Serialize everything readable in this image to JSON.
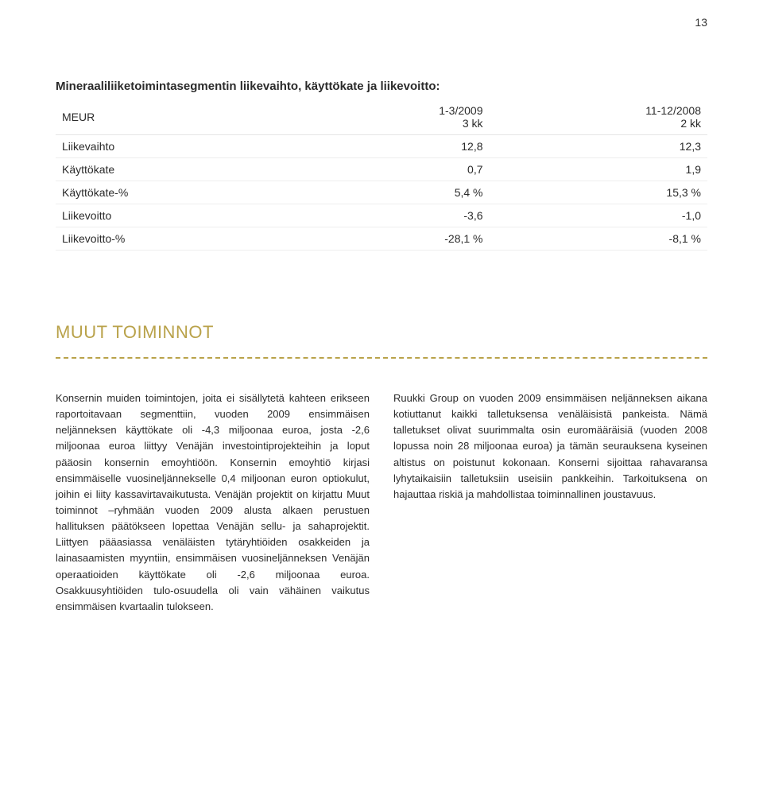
{
  "page_number": "13",
  "colors": {
    "heading": "#b9a24a",
    "dash": "#b9a24a",
    "text": "#2b2b2b",
    "rule": "#e5e5e5"
  },
  "table": {
    "title": "Mineraaliliiketoimintasegmentin liikevaihto, käyttökate ja liikevoitto:",
    "columns": [
      {
        "label": "MEUR"
      },
      {
        "top": "1-3/2009",
        "bottom": "3 kk"
      },
      {
        "top": "11-12/2008",
        "bottom": "2 kk"
      }
    ],
    "rows": [
      {
        "label": "Liikevaihto",
        "c1": "12,8",
        "c2": "12,3"
      },
      {
        "label": "Käyttökate",
        "c1": "0,7",
        "c2": "1,9"
      },
      {
        "label": "Käyttökate-%",
        "c1": "5,4 %",
        "c2": "15,3 %"
      },
      {
        "label": "Liikevoitto",
        "c1": "-3,6",
        "c2": "-1,0"
      },
      {
        "label": "Liikevoitto-%",
        "c1": "-28,1 %",
        "c2": "-8,1 %"
      }
    ]
  },
  "section_heading": "MUUT TOIMINNOT",
  "body": {
    "left": "Konsernin muiden toimintojen, joita ei sisällytetä kahteen erikseen raportoitavaan segmenttiin, vuoden 2009 ensimmäisen neljänneksen käyttökate oli -4,3 miljoonaa euroa, josta -2,6 miljoonaa euroa liittyy Venäjän investointiprojekteihin ja loput pääosin konsernin emoyhtiöön. Konsernin emoyhtiö kirjasi ensimmäiselle vuosineljännekselle 0,4 miljoonan euron optiokulut, joihin ei liity kassavirtavaikutusta. Venäjän projektit on kirjattu Muut toiminnot –ryhmään vuoden 2009 alusta alkaen perustuen hallituksen päätökseen lopettaa Venäjän sellu- ja sahaprojektit. Liittyen pääasiassa venäläisten tytäryhtiöiden osakkeiden ja lainasaamisten myyntiin, ensimmäisen vuosineljänneksen Venäjän operaatioiden käyttökate oli -2,6 miljoonaa euroa. Osakkuusyhtiöiden tulo-osuudella oli vain vähäinen vaikutus ensimmäisen kvartaalin tulokseen.",
    "right": "Ruukki Group on vuoden 2009 ensimmäisen neljänneksen aikana kotiuttanut kaikki talletuksensa venäläisistä pankeista. Nämä talletukset olivat suurimmalta osin euromääräisiä (vuoden 2008 lopussa noin 28 miljoonaa euroa) ja tämän seurauksena kyseinen altistus on poistunut kokonaan. Konserni sijoittaa rahavaransa lyhytaikaisiin talletuksiin useisiin pankkeihin. Tarkoituksena on hajauttaa riskiä ja mahdollistaa toiminnallinen joustavuus."
  }
}
